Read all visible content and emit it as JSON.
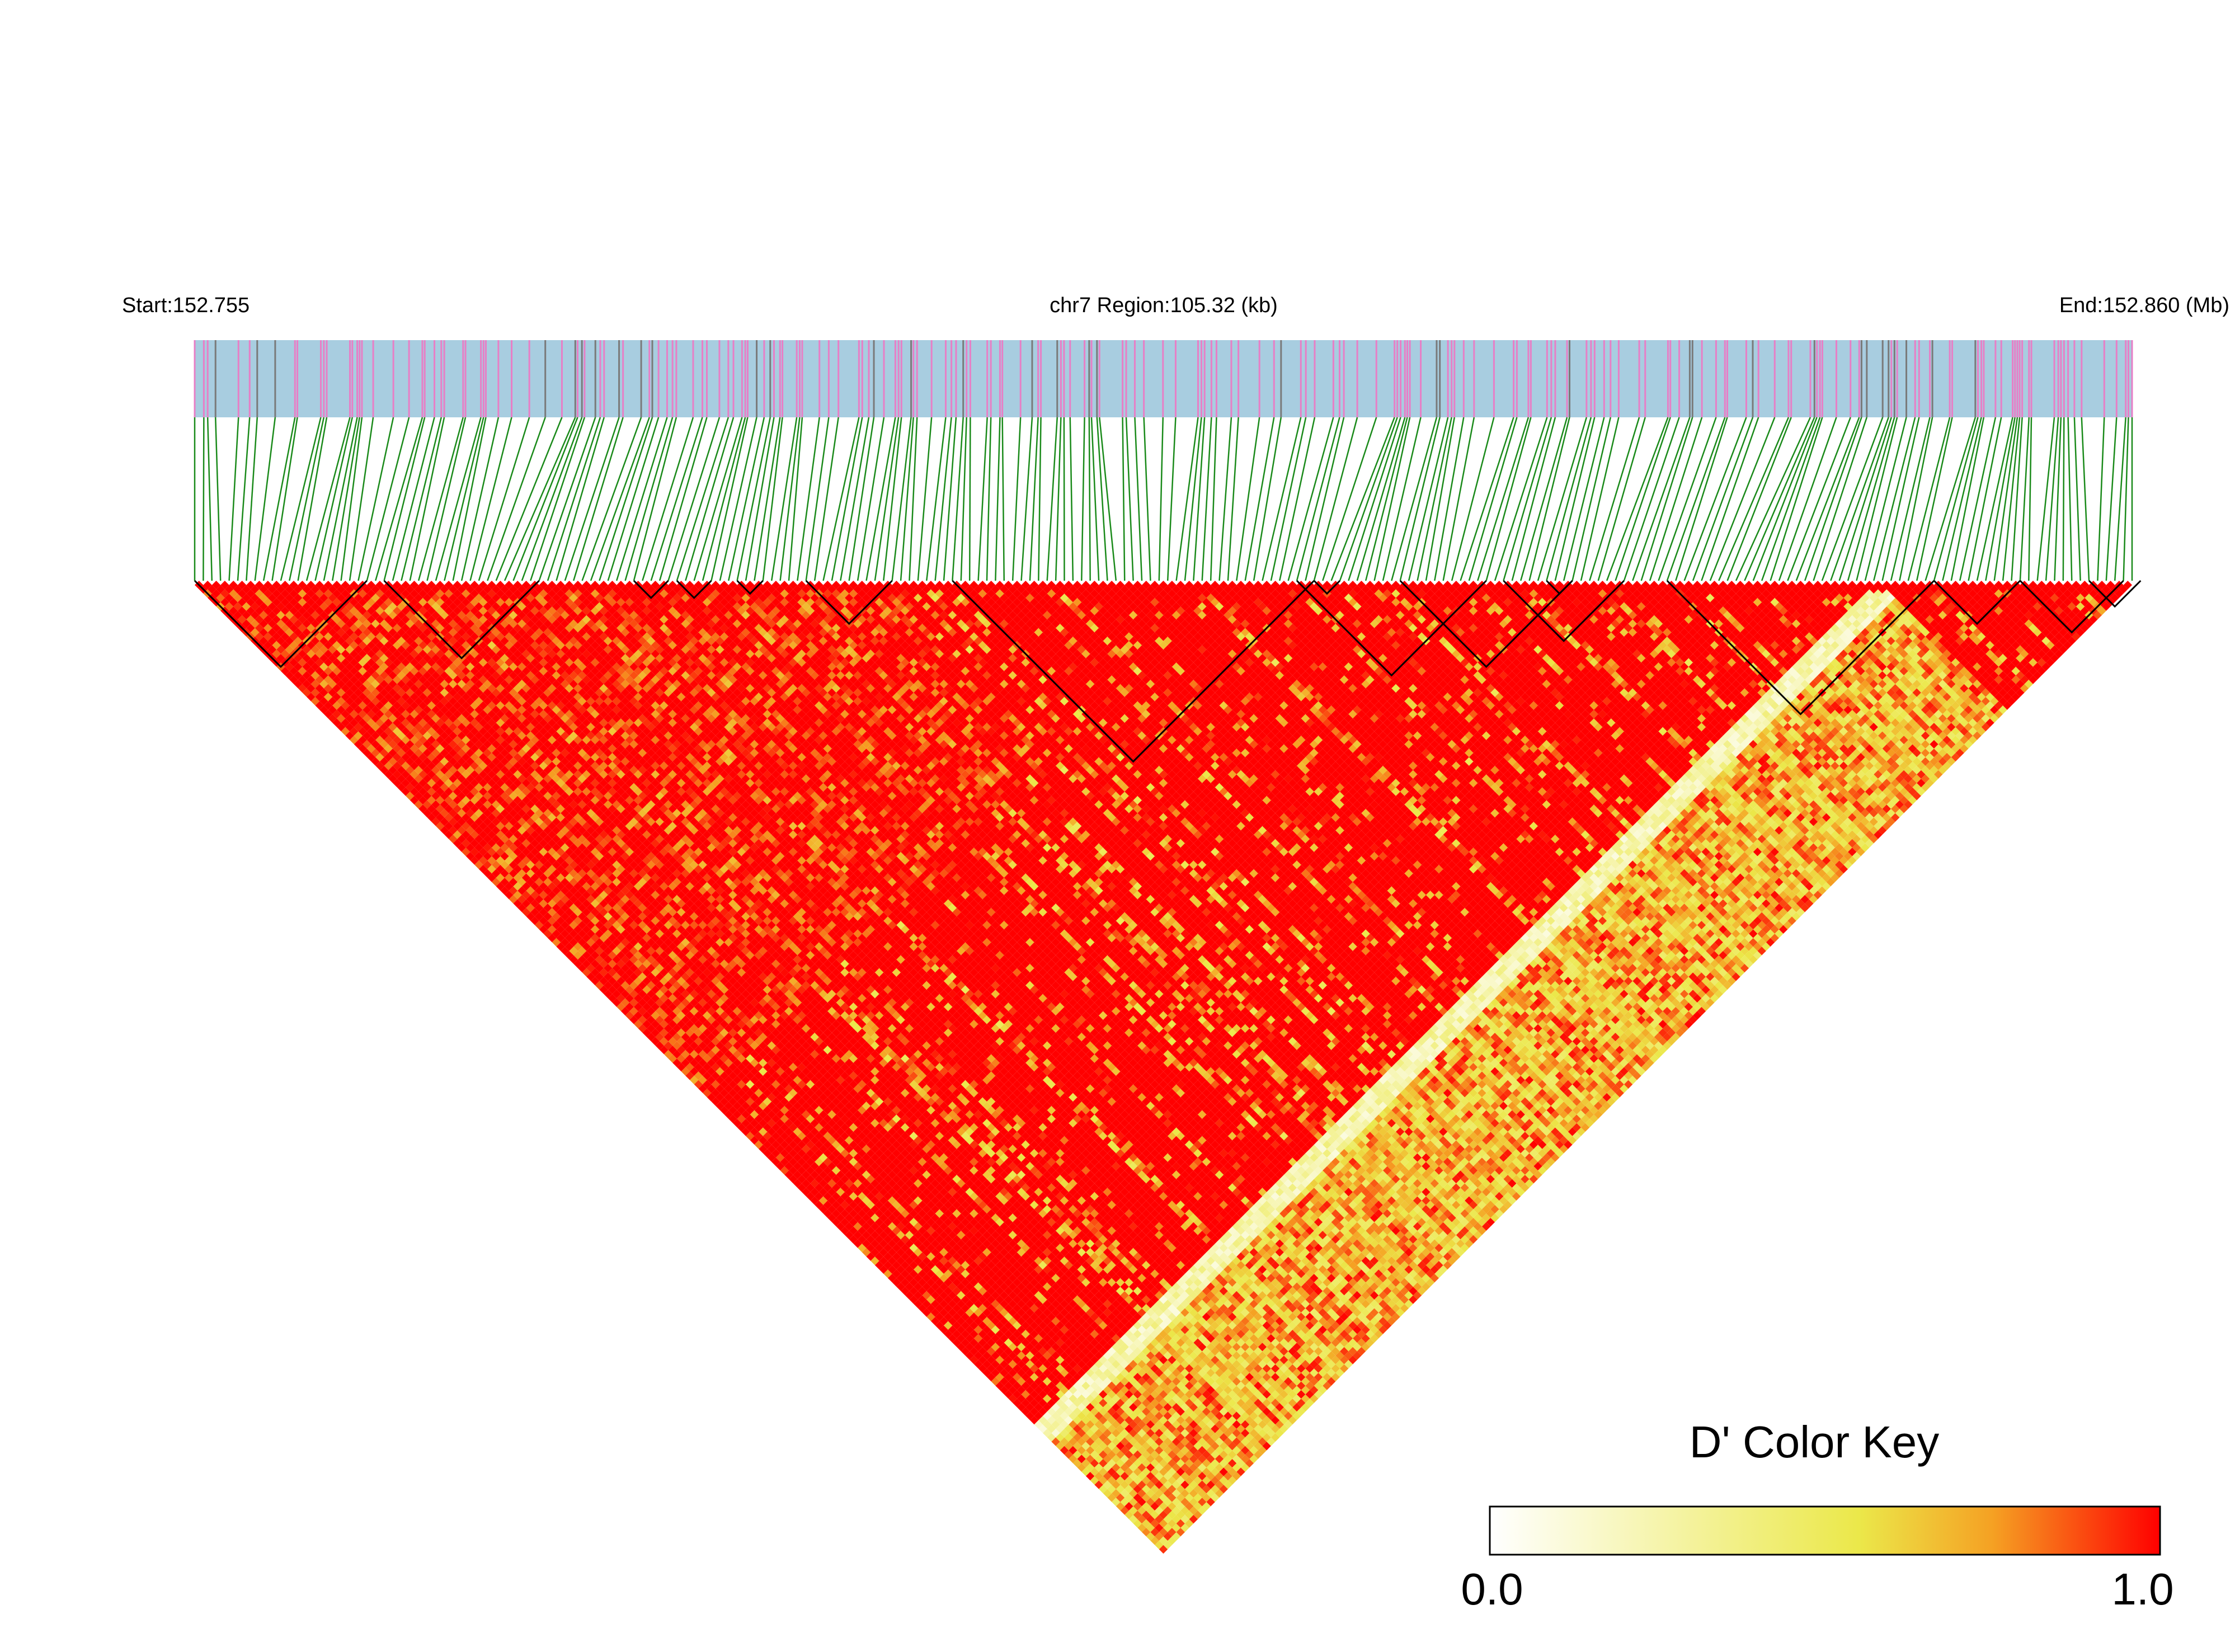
{
  "header": {
    "start_label": "Start:152.755",
    "region_label": "chr7 Region:105.32 (kb)",
    "end_label": "End:152.860 (Mb)"
  },
  "legend": {
    "title": "D' Color Key",
    "min_label": "0.0",
    "max_label": "1.0"
  },
  "colors": {
    "snp_bar_background": "#a8cde0",
    "snp_tick_pink": "#e77fc6",
    "snp_tick_gray": "#7a7a7a",
    "connector_green": "#1a8a1a",
    "ld_high": "#ff0000",
    "ld_low": "#ffffff",
    "ld_mid": "#ebe84a",
    "block_outline": "#000000"
  },
  "chart_data": {
    "type": "heatmap",
    "description_kind": "LD heatmap (pairwise D' between SNPs)",
    "chromosome": "chr7",
    "region_start_mb": 152.755,
    "region_end_mb": 152.86,
    "region_length_kb": 105.32,
    "approx_snp_count": 226,
    "value_metric": "D'",
    "value_range": [
      0.0,
      1.0
    ],
    "color_scale": [
      "#ffffff",
      "#ebe84a",
      "#f5a123",
      "#ff0000"
    ],
    "haplotype_blocks_snp_index": [
      [
        0,
        20
      ],
      [
        22,
        40
      ],
      [
        51,
        55
      ],
      [
        56,
        60
      ],
      [
        63,
        66
      ],
      [
        71,
        81
      ],
      [
        88,
        130
      ],
      [
        130,
        133
      ],
      [
        128,
        150
      ],
      [
        140,
        160
      ],
      [
        152,
        166
      ],
      [
        157,
        160
      ],
      [
        171,
        202
      ],
      [
        202,
        212
      ],
      [
        212,
        224
      ],
      [
        220,
        226
      ]
    ],
    "low_ld_boundary_snp_index": 196
  }
}
